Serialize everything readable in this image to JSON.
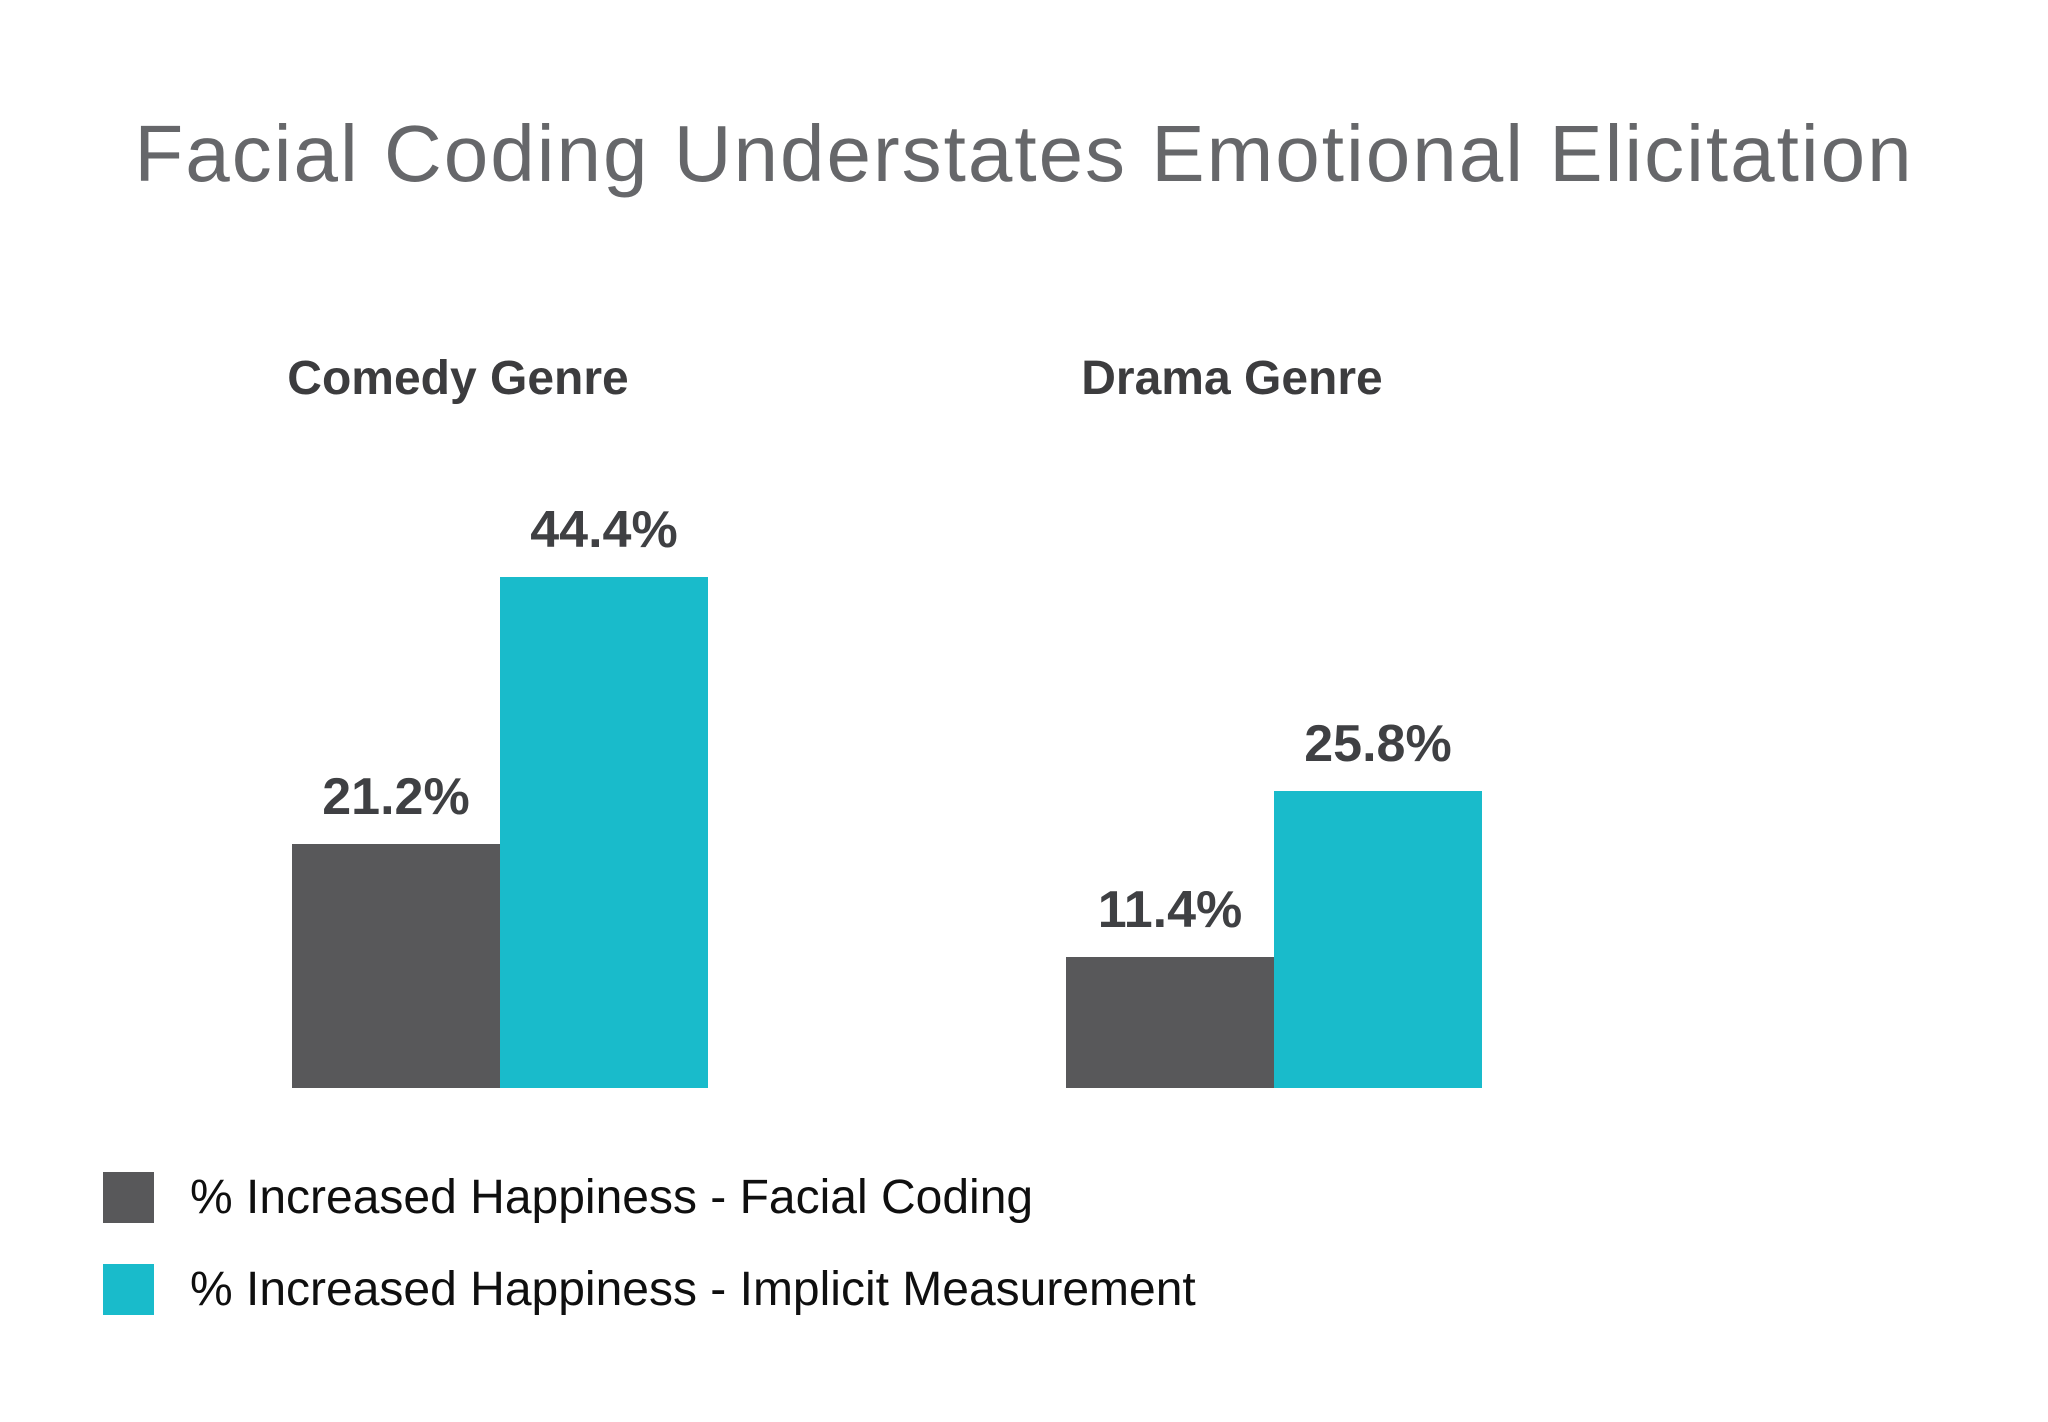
{
  "title": "Facial Coding Understates Emotional Elicitation",
  "chart_data": {
    "type": "bar",
    "categories": [
      "Comedy Genre",
      "Drama Genre"
    ],
    "series": [
      {
        "key": "facial-coding",
        "name": "% Increased Happiness - Facial Coding",
        "color": "#58585A",
        "values": [
          21.2,
          11.4
        ],
        "labels": [
          "21.2%",
          "11.4%"
        ]
      },
      {
        "key": "implicit-measurement",
        "name": "% Increased Happiness - Implicit Measurement",
        "color": "#19BBCB",
        "values": [
          44.4,
          25.8
        ],
        "labels": [
          "44.4%",
          "25.8%"
        ]
      }
    ],
    "ylim": [
      0,
      50
    ],
    "grid": false,
    "axes_visible": false,
    "value_label_format": "percent",
    "legend_position": "bottom-left"
  },
  "colors": {
    "background": "#FFFFFF",
    "title_text": "#66676A",
    "category_text": "#3C3C3E",
    "value_text": "#3F4043",
    "legend_text": "#0F0F0F",
    "facial_coding_bar": "#58585A",
    "implicit_measurement_bar": "#19BBCB"
  }
}
